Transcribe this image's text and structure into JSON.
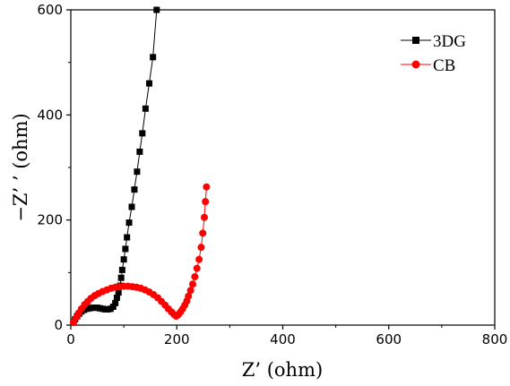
{
  "chart_data": {
    "type": "scatter",
    "title": "",
    "xlabel": "Z’ (ohm)",
    "ylabel": "−Z’ ’ (ohm)",
    "xlim": [
      0,
      800
    ],
    "ylim": [
      0,
      600
    ],
    "xticks": [
      0,
      200,
      400,
      600,
      800
    ],
    "yticks": [
      0,
      200,
      400,
      600
    ],
    "grid": false,
    "legend": "top-right",
    "series": [
      {
        "name": "3DG",
        "color": "#000000",
        "marker": "square",
        "x": [
          5,
          8,
          12,
          16,
          20,
          25,
          30,
          35,
          40,
          45,
          50,
          55,
          60,
          65,
          70,
          75,
          80,
          84,
          87,
          90,
          93,
          95,
          97,
          100,
          103,
          106,
          110,
          115,
          120,
          125,
          130,
          135,
          141,
          148,
          155,
          162
        ],
        "y": [
          5,
          11,
          17,
          22,
          26,
          29,
          31,
          32,
          33,
          33,
          33,
          32,
          31,
          30,
          30,
          31,
          35,
          42,
          52,
          62,
          75,
          90,
          105,
          125,
          145,
          167,
          195,
          225,
          258,
          292,
          330,
          365,
          412,
          460,
          510,
          600
        ]
      },
      {
        "name": "CB",
        "color": "#ff0000",
        "marker": "circle",
        "x": [
          5,
          10,
          15,
          20,
          26,
          32,
          38,
          45,
          52,
          60,
          68,
          76,
          84,
          92,
          100,
          108,
          116,
          124,
          132,
          140,
          148,
          156,
          164,
          171,
          178,
          184,
          190,
          195,
          199,
          203,
          207,
          211,
          215,
          219,
          222,
          226,
          230,
          234,
          238,
          242,
          246,
          249,
          252,
          254,
          256
        ],
        "y": [
          5,
          14,
          23,
          31,
          39,
          45,
          51,
          56,
          60,
          64,
          67,
          70,
          72,
          73,
          74,
          74,
          73,
          72,
          70,
          67,
          63,
          58,
          52,
          45,
          38,
          31,
          25,
          20,
          17,
          20,
          25,
          31,
          38,
          46,
          55,
          66,
          78,
          92,
          108,
          125,
          148,
          175,
          205,
          235,
          263
        ]
      }
    ]
  }
}
